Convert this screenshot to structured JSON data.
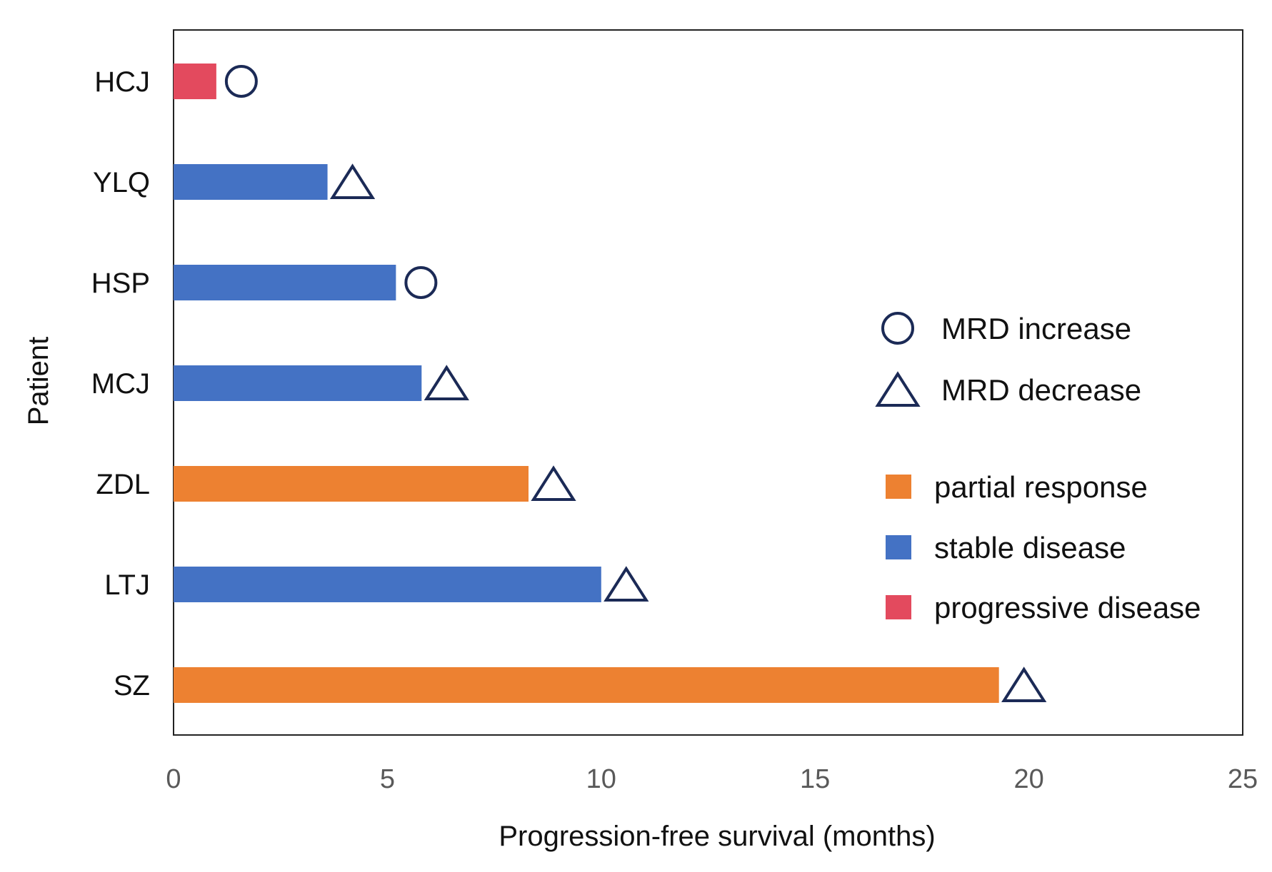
{
  "chart_data": {
    "type": "bar",
    "orientation": "horizontal",
    "xlabel": "Progression-free survival (months)",
    "ylabel": "Patient",
    "xlim": [
      0,
      25
    ],
    "xticks": [
      0,
      5,
      10,
      15,
      20,
      25
    ],
    "grid": false,
    "legend_position": "right",
    "categories": [
      "HCJ",
      "YLQ",
      "HSP",
      "MCJ",
      "ZDL",
      "LTJ",
      "SZ"
    ],
    "values": [
      1.0,
      3.6,
      5.2,
      5.8,
      8.3,
      10.0,
      19.3
    ],
    "response": [
      "progressive disease",
      "stable disease",
      "stable disease",
      "stable disease",
      "partial response",
      "stable disease",
      "partial response"
    ],
    "mrd_markers": [
      "MRD increase",
      "MRD decrease",
      "MRD increase",
      "MRD decrease",
      "MRD decrease",
      "MRD decrease",
      "MRD decrease"
    ],
    "response_colors": {
      "partial response": "#ED8131",
      "stable disease": "#4472C4",
      "progressive disease": "#E34A5E"
    },
    "marker_color": "#1B2A56",
    "marker_legend": [
      {
        "label": "MRD increase",
        "shape": "circle"
      },
      {
        "label": "MRD decrease",
        "shape": "triangle"
      }
    ],
    "color_legend": [
      "partial response",
      "stable disease",
      "progressive disease"
    ]
  }
}
